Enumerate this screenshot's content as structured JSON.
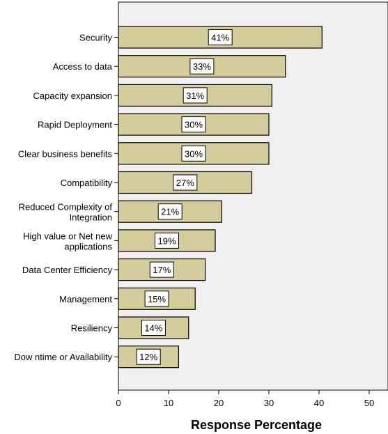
{
  "chart_data": {
    "type": "bar",
    "orientation": "horizontal",
    "categories": [
      [
        "Security"
      ],
      [
        "Access to data"
      ],
      [
        "Capacity expansion"
      ],
      [
        "Rapid Deployment"
      ],
      [
        "Clear business benefits"
      ],
      [
        "Compatibility"
      ],
      [
        "Reduced Complexity of",
        "Integration"
      ],
      [
        "High value or Net new",
        "applications"
      ],
      [
        "Data Center Efficiency"
      ],
      [
        "Management"
      ],
      [
        "Resiliency"
      ],
      [
        "Dow ntime or Availability"
      ]
    ],
    "values": [
      40.6,
      33.3,
      30.6,
      30.0,
      30.0,
      26.6,
      20.6,
      19.3,
      17.3,
      15.3,
      14.0,
      12.0
    ],
    "data_labels": [
      "41%",
      "33%",
      "31%",
      "30%",
      "30%",
      "27%",
      "21%",
      "19%",
      "17%",
      "15%",
      "14%",
      "12%"
    ],
    "xlabel": "Response Percentage",
    "ylabel": "",
    "xlim": [
      0,
      54
    ],
    "xticks": [
      0,
      10,
      20,
      30,
      40,
      50
    ],
    "grid": false,
    "colors": {
      "bar_fill": "#d4cc9a",
      "bar_stroke": "#000000",
      "plot_bg": "#f0f0f0",
      "label_box_bg": "#ffffff"
    }
  }
}
